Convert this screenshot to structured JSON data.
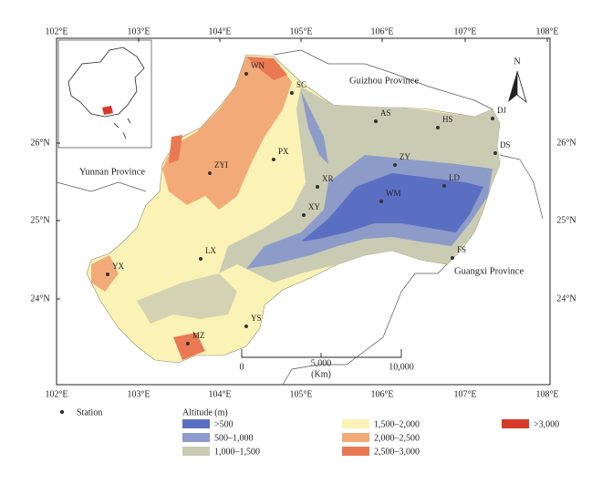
{
  "map": {
    "lon_labels": [
      "102°E",
      "103°E",
      "104°E",
      "105°E",
      "106°E",
      "107°E",
      "108°E"
    ],
    "lat_labels": [
      "26°N",
      "25°N",
      "24°N"
    ],
    "provinces": [
      "Guizhou Province",
      "Yunnan Province",
      "Guangxi Province"
    ],
    "stations": [
      "WN",
      "SC",
      "AS",
      "HS",
      "DJ",
      "DS",
      "ZY",
      "LD",
      "PX",
      "ZYI",
      "XR",
      "XY",
      "WM",
      "LX",
      "YX",
      "FS",
      "YS",
      "MZ"
    ],
    "north": "N",
    "scale_bar": {
      "ticks": [
        "0",
        "5,000",
        "10,000"
      ],
      "unit": "(Km)"
    }
  },
  "legend": {
    "station": "Station",
    "title": "Altitude (m)",
    "classes": [
      {
        "label": ">500",
        "color": "#5b6fc2"
      },
      {
        "label": "500–1,000",
        "color": "#8d9bc9"
      },
      {
        "label": "1,000–1,500",
        "color": "#c9cbb3"
      },
      {
        "label": "1,500–2,000",
        "color": "#fbf2b6"
      },
      {
        "label": "2,000–2,500",
        "color": "#f2ab78"
      },
      {
        "label": "2,500–3,000",
        "color": "#ea7853"
      },
      {
        "label": ">3,000",
        "color": "#d63a28"
      }
    ]
  }
}
